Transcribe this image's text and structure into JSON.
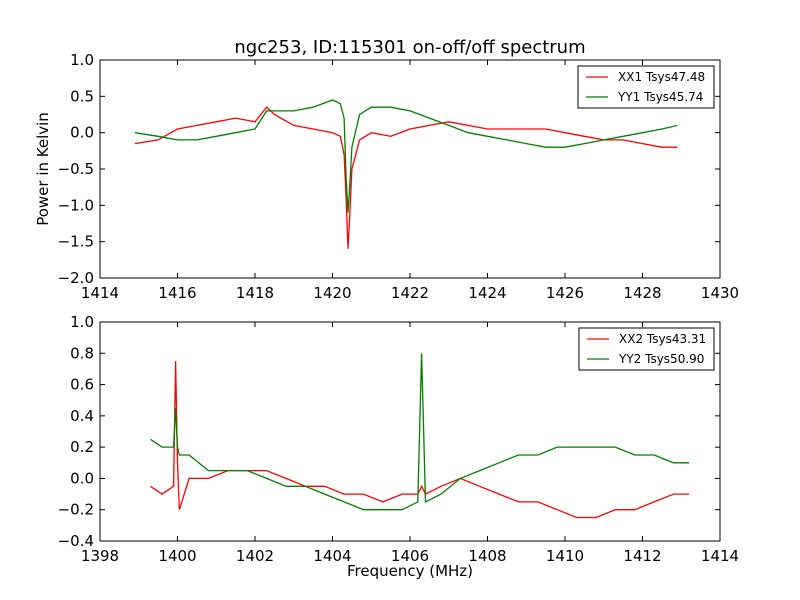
{
  "chart_data": [
    {
      "type": "line",
      "title": "ngc253, ID:115301 on-off/off spectrum",
      "xlabel": "",
      "ylabel": "Power in Kelvin",
      "xlim": [
        1414,
        1430
      ],
      "ylim": [
        -2.0,
        1.0
      ],
      "xticks": [
        "1414",
        "1416",
        "1418",
        "1420",
        "1422",
        "1424",
        "1426",
        "1428",
        "1430"
      ],
      "yticks": [
        "1.0",
        "0.5",
        "0.0",
        "−0.5",
        "−1.0",
        "−1.5",
        "−2.0"
      ],
      "legend_position": "top-right",
      "series": [
        {
          "name": "XX1 Tsys47.48",
          "color": "#ff0000",
          "x": [
            1414.9,
            1415.5,
            1416.0,
            1416.5,
            1417.0,
            1417.5,
            1418.0,
            1418.3,
            1418.5,
            1419.0,
            1419.5,
            1420.0,
            1420.2,
            1420.3,
            1420.35,
            1420.4,
            1420.45,
            1420.5,
            1420.7,
            1421.0,
            1421.5,
            1422.0,
            1422.5,
            1423.0,
            1423.5,
            1424.0,
            1424.5,
            1425.0,
            1425.5,
            1426.0,
            1426.5,
            1427.0,
            1427.5,
            1428.0,
            1428.5,
            1428.9
          ],
          "y": [
            -0.15,
            -0.1,
            0.05,
            0.1,
            0.15,
            0.2,
            0.15,
            0.35,
            0.25,
            0.1,
            0.05,
            0.0,
            -0.05,
            -0.3,
            -0.9,
            -1.6,
            -1.1,
            -0.5,
            -0.1,
            0.0,
            -0.05,
            0.05,
            0.1,
            0.15,
            0.1,
            0.05,
            0.05,
            0.05,
            0.05,
            0.0,
            -0.05,
            -0.1,
            -0.1,
            -0.15,
            -0.2,
            -0.2
          ]
        },
        {
          "name": "YY1 Tsys45.74",
          "color": "#008000",
          "x": [
            1414.9,
            1415.5,
            1416.0,
            1416.5,
            1417.0,
            1417.5,
            1418.0,
            1418.3,
            1418.5,
            1419.0,
            1419.5,
            1420.0,
            1420.2,
            1420.3,
            1420.35,
            1420.4,
            1420.45,
            1420.5,
            1420.7,
            1421.0,
            1421.5,
            1422.0,
            1422.5,
            1423.0,
            1423.5,
            1424.0,
            1424.5,
            1425.0,
            1425.5,
            1426.0,
            1426.5,
            1427.0,
            1427.5,
            1428.0,
            1428.5,
            1428.9
          ],
          "y": [
            0.0,
            -0.05,
            -0.1,
            -0.1,
            -0.05,
            0.0,
            0.05,
            0.3,
            0.3,
            0.3,
            0.35,
            0.45,
            0.4,
            0.2,
            -0.6,
            -1.1,
            -0.7,
            -0.2,
            0.25,
            0.35,
            0.35,
            0.3,
            0.2,
            0.1,
            0.0,
            -0.05,
            -0.1,
            -0.15,
            -0.2,
            -0.2,
            -0.15,
            -0.1,
            -0.05,
            0.0,
            0.05,
            0.1
          ]
        }
      ]
    },
    {
      "type": "line",
      "title": "",
      "xlabel": "Frequency (MHz)",
      "ylabel": "",
      "xlim": [
        1398,
        1414
      ],
      "ylim": [
        -0.4,
        1.0
      ],
      "xticks": [
        "1398",
        "1400",
        "1402",
        "1404",
        "1406",
        "1408",
        "1410",
        "1412",
        "1414"
      ],
      "yticks": [
        "1.0",
        "0.8",
        "0.6",
        "0.4",
        "0.2",
        "0.0",
        "−0.2",
        "−0.4"
      ],
      "legend_position": "top-right",
      "series": [
        {
          "name": "XX2 Tsys43.31",
          "color": "#ff0000",
          "x": [
            1399.3,
            1399.6,
            1399.9,
            1399.95,
            1400.0,
            1400.05,
            1400.3,
            1400.8,
            1401.3,
            1401.8,
            1402.3,
            1402.8,
            1403.3,
            1403.8,
            1404.3,
            1404.8,
            1405.3,
            1405.8,
            1406.2,
            1406.3,
            1406.4,
            1406.8,
            1407.3,
            1407.8,
            1408.3,
            1408.8,
            1409.3,
            1409.8,
            1410.3,
            1410.8,
            1411.3,
            1411.8,
            1412.3,
            1412.8,
            1413.2
          ],
          "y": [
            -0.05,
            -0.1,
            -0.05,
            0.75,
            0.1,
            -0.2,
            0.0,
            0.0,
            0.05,
            0.05,
            0.05,
            0.0,
            -0.05,
            -0.05,
            -0.1,
            -0.1,
            -0.15,
            -0.1,
            -0.1,
            -0.05,
            -0.1,
            -0.05,
            0.0,
            -0.05,
            -0.1,
            -0.15,
            -0.15,
            -0.2,
            -0.25,
            -0.25,
            -0.2,
            -0.2,
            -0.15,
            -0.1,
            -0.1
          ]
        },
        {
          "name": "YY2 Tsys50.90",
          "color": "#008000",
          "x": [
            1399.3,
            1399.6,
            1399.9,
            1399.95,
            1400.0,
            1400.05,
            1400.3,
            1400.8,
            1401.3,
            1401.8,
            1402.3,
            1402.8,
            1403.3,
            1403.8,
            1404.3,
            1404.8,
            1405.3,
            1405.8,
            1406.2,
            1406.3,
            1406.4,
            1406.8,
            1407.3,
            1407.8,
            1408.3,
            1408.8,
            1409.3,
            1409.8,
            1410.3,
            1410.8,
            1411.3,
            1411.8,
            1412.3,
            1412.8,
            1413.2
          ],
          "y": [
            0.25,
            0.2,
            0.2,
            0.45,
            0.2,
            0.15,
            0.15,
            0.05,
            0.05,
            0.05,
            0.0,
            -0.05,
            -0.05,
            -0.1,
            -0.15,
            -0.2,
            -0.2,
            -0.2,
            -0.15,
            0.8,
            -0.15,
            -0.1,
            0.0,
            0.05,
            0.1,
            0.15,
            0.15,
            0.2,
            0.2,
            0.2,
            0.2,
            0.15,
            0.15,
            0.1,
            0.1
          ]
        }
      ]
    }
  ]
}
